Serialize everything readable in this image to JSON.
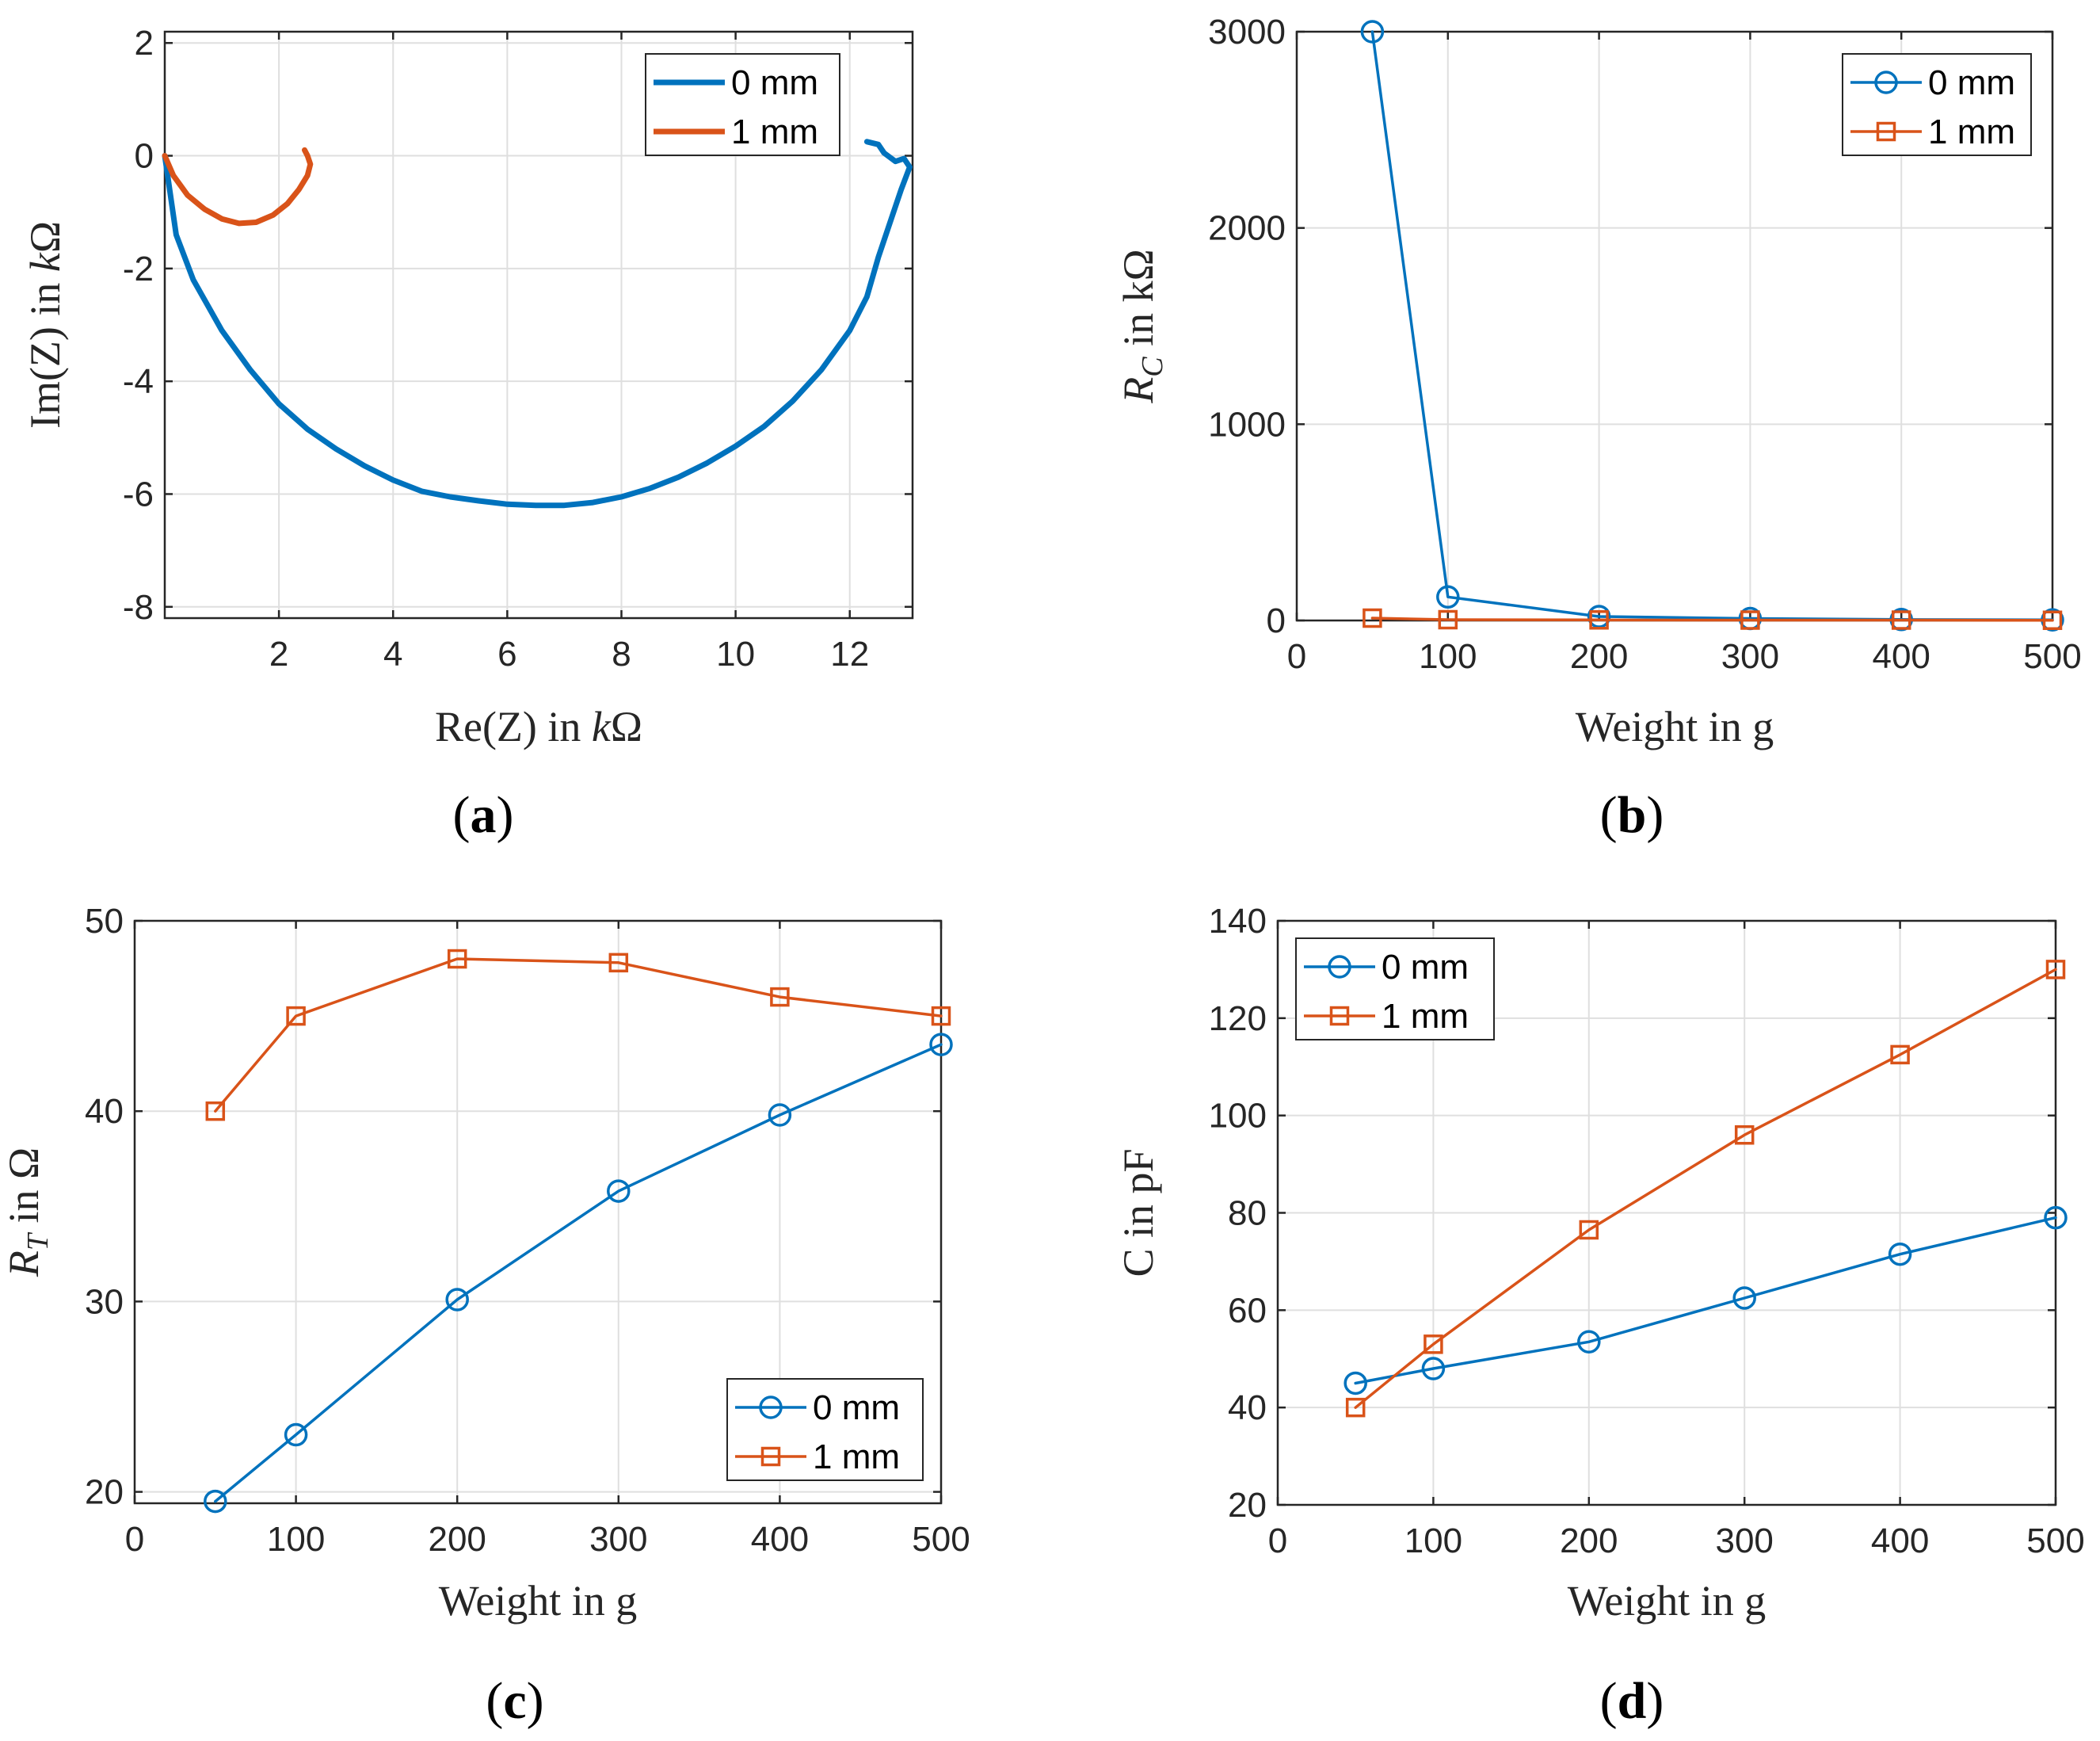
{
  "colors": {
    "series0": "#0072BD",
    "series1": "#D95319",
    "axis": "#262626",
    "grid": "#dfdfdf"
  },
  "chart_data": [
    {
      "id": "a",
      "type": "line",
      "caption_letter": "a",
      "xlabel_parts": [
        "Re(Z) in ",
        "k",
        "Ω"
      ],
      "ylabel_parts": [
        "Im(Z) in ",
        "k",
        "Ω"
      ],
      "xlim": [
        0,
        13.1
      ],
      "ylim": [
        -8.2,
        2.2
      ],
      "xticks": [
        2,
        4,
        6,
        8,
        10,
        12
      ],
      "yticks": [
        -8,
        -6,
        -4,
        -2,
        0,
        2
      ],
      "grid": true,
      "legend_position": "top-right",
      "series": [
        {
          "name": "0 mm",
          "marker": "none",
          "x": [
            0.0,
            0.2,
            0.5,
            1.0,
            1.5,
            2.0,
            2.5,
            3.0,
            3.5,
            4.0,
            4.5,
            5.0,
            5.5,
            6.0,
            6.5,
            7.0,
            7.5,
            8.0,
            8.5,
            9.0,
            9.5,
            10.0,
            10.5,
            11.0,
            11.5,
            12.0,
            12.3,
            12.5,
            12.7,
            12.9,
            13.05,
            12.95,
            12.8,
            12.6,
            12.5,
            12.3
          ],
          "y": [
            0.0,
            -1.4,
            -2.2,
            -3.1,
            -3.8,
            -4.4,
            -4.85,
            -5.2,
            -5.5,
            -5.75,
            -5.95,
            -6.05,
            -6.12,
            -6.18,
            -6.2,
            -6.2,
            -6.15,
            -6.05,
            -5.9,
            -5.7,
            -5.45,
            -5.15,
            -4.8,
            -4.35,
            -3.8,
            -3.1,
            -2.5,
            -1.8,
            -1.2,
            -0.6,
            -0.2,
            -0.05,
            -0.1,
            0.05,
            0.2,
            0.25
          ]
        },
        {
          "name": "1 mm",
          "marker": "none",
          "x": [
            0.0,
            0.15,
            0.4,
            0.7,
            1.0,
            1.3,
            1.6,
            1.9,
            2.15,
            2.35,
            2.5,
            2.55,
            2.5,
            2.45
          ],
          "y": [
            0.0,
            -0.35,
            -0.7,
            -0.95,
            -1.12,
            -1.2,
            -1.18,
            -1.05,
            -0.85,
            -0.6,
            -0.35,
            -0.15,
            0.0,
            0.1
          ]
        }
      ]
    },
    {
      "id": "b",
      "type": "line",
      "caption_letter": "b",
      "xlabel_parts": [
        "Weight in g"
      ],
      "ylabel_parts": [
        "R",
        "C",
        " in kΩ"
      ],
      "xlim": [
        0,
        500
      ],
      "ylim": [
        0,
        3000
      ],
      "xticks": [
        0,
        100,
        200,
        300,
        400,
        500
      ],
      "yticks": [
        0,
        1000,
        2000,
        3000
      ],
      "grid": true,
      "legend_position": "top-right",
      "series": [
        {
          "name": "0 mm",
          "marker": "circle",
          "x": [
            50,
            100,
            200,
            300,
            400,
            500
          ],
          "y": [
            3000,
            120,
            20,
            10,
            5,
            3
          ]
        },
        {
          "name": "1 mm",
          "marker": "square",
          "x": [
            50,
            100,
            200,
            300,
            400,
            500
          ],
          "y": [
            12,
            4,
            3,
            2,
            2,
            1
          ]
        }
      ]
    },
    {
      "id": "c",
      "type": "line",
      "caption_letter": "c",
      "xlabel_parts": [
        "Weight in g"
      ],
      "ylabel_parts": [
        "R",
        "T",
        " in Ω"
      ],
      "xlim": [
        0,
        500
      ],
      "ylim": [
        19.4,
        50
      ],
      "xticks": [
        0,
        100,
        200,
        300,
        400,
        500
      ],
      "yticks": [
        20,
        30,
        40,
        50
      ],
      "grid": true,
      "legend_position": "bottom-right",
      "series": [
        {
          "name": "0 mm",
          "marker": "circle",
          "x": [
            50,
            100,
            200,
            300,
            400,
            500
          ],
          "y": [
            19.5,
            23.0,
            30.1,
            35.8,
            39.8,
            43.5
          ]
        },
        {
          "name": "1 mm",
          "marker": "square",
          "x": [
            50,
            100,
            200,
            300,
            400,
            500
          ],
          "y": [
            40.0,
            45.0,
            48.0,
            47.8,
            46.0,
            45.0
          ]
        }
      ]
    },
    {
      "id": "d",
      "type": "line",
      "caption_letter": "d",
      "xlabel_parts": [
        "Weight in g"
      ],
      "ylabel_parts": [
        "C in pF"
      ],
      "xlim": [
        0,
        500
      ],
      "ylim": [
        20,
        140
      ],
      "xticks": [
        0,
        100,
        200,
        300,
        400,
        500
      ],
      "yticks": [
        20,
        40,
        60,
        80,
        100,
        120,
        140
      ],
      "grid": true,
      "legend_position": "top-left",
      "series": [
        {
          "name": "0 mm",
          "marker": "circle",
          "x": [
            50,
            100,
            200,
            300,
            400,
            500
          ],
          "y": [
            45,
            48,
            53.5,
            62.5,
            71.5,
            79
          ]
        },
        {
          "name": "1 mm",
          "marker": "square",
          "x": [
            50,
            100,
            200,
            300,
            400,
            500
          ],
          "y": [
            40,
            53,
            76.5,
            96,
            112.5,
            130
          ]
        }
      ]
    }
  ]
}
